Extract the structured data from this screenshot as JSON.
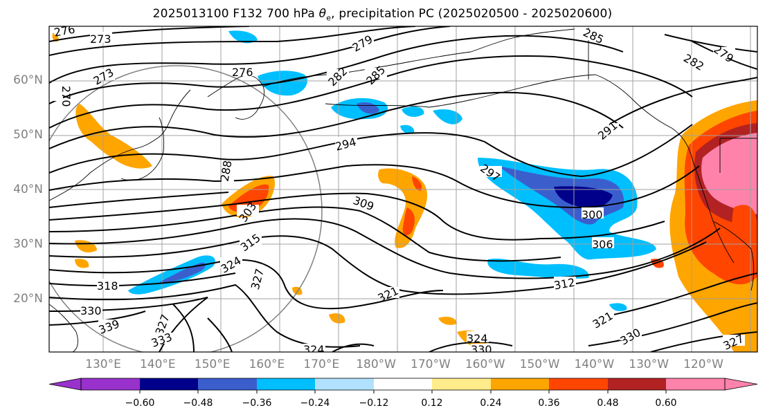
{
  "title": {
    "prefix": "2025013100 F132 700 hPa ",
    "symbol": "θ",
    "subscript": "e",
    "suffix": ", precipitation PC (2025020500 - 2025020600)"
  },
  "latitude_labels": [
    "60°N",
    "50°N",
    "40°N",
    "30°N",
    "20°N"
  ],
  "longitude_labels": [
    "130°E",
    "140°E",
    "150°E",
    "160°E",
    "170°E",
    "180°W",
    "170°W",
    "160°W",
    "150°W",
    "140°W",
    "130°W",
    "120°W"
  ],
  "colorbar": {
    "tick_labels": [
      "−0.60",
      "−0.48",
      "−0.36",
      "−0.24",
      "−0.12",
      "0.12",
      "0.24",
      "0.36",
      "0.48",
      "0.60"
    ],
    "colors": [
      "#9932cc",
      "#00008b",
      "#3a5fcd",
      "#00bfff",
      "#b0e2ff",
      "#ffffff",
      "#ffec8b",
      "#ffa500",
      "#ff4500",
      "#b22222",
      "#ff82ab"
    ]
  },
  "contour_labels": [
    "276",
    "273",
    "273",
    "270",
    "276",
    "279",
    "282",
    "285",
    "285",
    "282",
    "279",
    "294",
    "291",
    "288",
    "297",
    "300",
    "303",
    "309",
    "306",
    "315",
    "318",
    "324",
    "327",
    "330",
    "339",
    "327",
    "333",
    "321",
    "312",
    "321",
    "324",
    "330",
    "330",
    "327",
    "324"
  ]
}
